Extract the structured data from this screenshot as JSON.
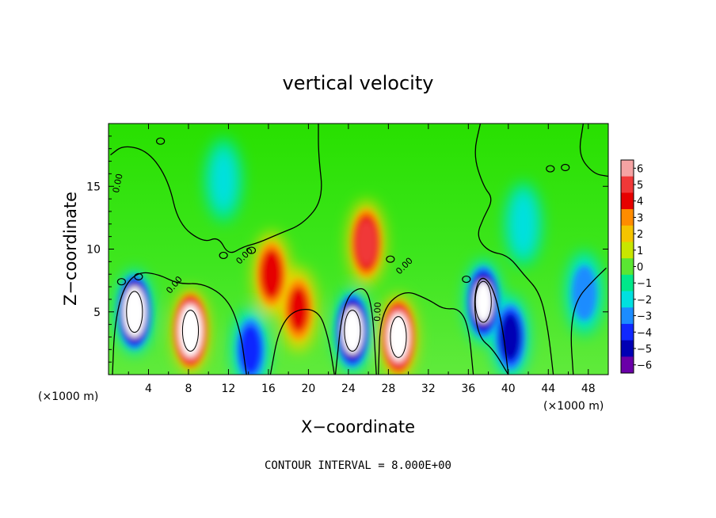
{
  "chart_data": {
    "type": "heatmap",
    "title": "vertical velocity",
    "xlabel": "X−coordinate",
    "ylabel": "Z−coordinate",
    "x_unit_left": "(×1000 m)",
    "x_unit_right": "(×1000 m)",
    "xlim": [
      0,
      50
    ],
    "ylim": [
      0,
      20
    ],
    "x_ticks": [
      4,
      8,
      12,
      16,
      20,
      24,
      28,
      32,
      36,
      40,
      44,
      48
    ],
    "x_tick_labels": [
      "4",
      "8",
      "12",
      "16",
      "20",
      "24",
      "28",
      "32",
      "36",
      "40",
      "44",
      "48"
    ],
    "y_ticks": [
      5,
      10,
      15
    ],
    "y_tick_labels": [
      "5",
      "10",
      "15"
    ],
    "note": "CONTOUR INTERVAL = 8.000E+00",
    "contour_label": "0.00",
    "colorbar": {
      "levels": [
        6,
        5,
        4,
        3,
        2,
        1,
        0,
        -1,
        -2,
        -3,
        -4,
        -5,
        -6
      ],
      "labels": [
        "6",
        "5",
        "4",
        "3",
        "2",
        "1",
        "0",
        "−1",
        "−2",
        "−3",
        "−4",
        "−5",
        "−6"
      ],
      "colors": [
        "#f5a3a3",
        "#f03838",
        "#e60000",
        "#ff8c00",
        "#f5c400",
        "#c8e600",
        "#5ae632",
        "#00e88a",
        "#00e0e0",
        "#1c8cff",
        "#1028ff",
        "#0000b4",
        "#6a00a8"
      ]
    },
    "features": [
      {
        "x": 2.6,
        "z": 5.0,
        "amp": -9
      },
      {
        "x": 8.2,
        "z": 3.5,
        "amp": 9
      },
      {
        "x": 16.3,
        "z": 8.0,
        "amp": 4
      },
      {
        "x": 19.0,
        "z": 5.2,
        "amp": 3.5
      },
      {
        "x": 14.2,
        "z": 2.0,
        "amp": -4
      },
      {
        "x": 24.4,
        "z": 3.5,
        "amp": -8
      },
      {
        "x": 25.8,
        "z": 10.5,
        "amp": 5
      },
      {
        "x": 29.0,
        "z": 3.0,
        "amp": 8
      },
      {
        "x": 37.5,
        "z": 5.8,
        "amp": -7
      },
      {
        "x": 40.2,
        "z": 3.0,
        "amp": -5
      },
      {
        "x": 47.6,
        "z": 6.5,
        "amp": -3
      },
      {
        "x": 41.5,
        "z": 12.0,
        "amp": -2
      },
      {
        "x": 11.5,
        "z": 15.5,
        "amp": -1.5
      }
    ]
  }
}
